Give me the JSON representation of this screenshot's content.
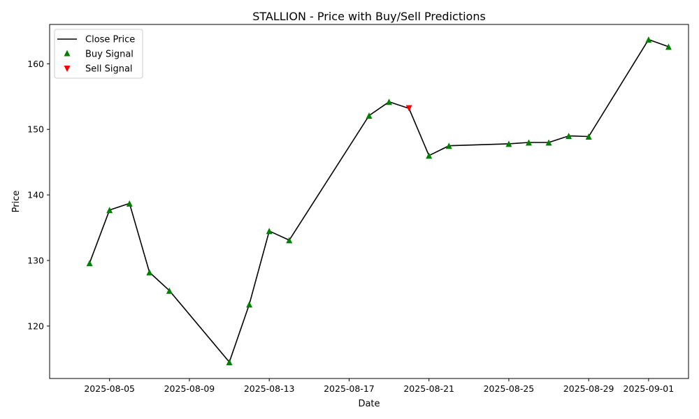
{
  "chart_data": {
    "type": "line",
    "title": "STALLION - Price with Buy/Sell Predictions",
    "xlabel": "Date",
    "ylabel": "Price",
    "x": [
      "2025-08-04",
      "2025-08-05",
      "2025-08-06",
      "2025-08-07",
      "2025-08-08",
      "2025-08-11",
      "2025-08-12",
      "2025-08-13",
      "2025-08-14",
      "2025-08-18",
      "2025-08-19",
      "2025-08-20",
      "2025-08-21",
      "2025-08-22",
      "2025-08-25",
      "2025-08-26",
      "2025-08-27",
      "2025-08-28",
      "2025-08-29",
      "2025-09-01",
      "2025-09-02"
    ],
    "series": [
      {
        "name": "Close Price",
        "kind": "line",
        "color": "#000000",
        "values": [
          129.6,
          137.7,
          138.7,
          128.2,
          125.4,
          114.5,
          123.3,
          134.5,
          133.1,
          152.1,
          154.2,
          153.2,
          146.0,
          147.5,
          147.8,
          148.0,
          148.0,
          149.0,
          148.9,
          163.7,
          162.6
        ]
      },
      {
        "name": "Buy Signal",
        "kind": "marker",
        "marker": "triangle-up",
        "color": "#008000",
        "x": [
          "2025-08-04",
          "2025-08-05",
          "2025-08-06",
          "2025-08-07",
          "2025-08-08",
          "2025-08-11",
          "2025-08-12",
          "2025-08-13",
          "2025-08-14",
          "2025-08-18",
          "2025-08-19",
          "2025-08-21",
          "2025-08-22",
          "2025-08-25",
          "2025-08-26",
          "2025-08-27",
          "2025-08-28",
          "2025-08-29",
          "2025-09-01",
          "2025-09-02"
        ],
        "values": [
          129.6,
          137.7,
          138.7,
          128.2,
          125.4,
          114.5,
          123.3,
          134.5,
          133.1,
          152.1,
          154.2,
          146.0,
          147.5,
          147.8,
          148.0,
          148.0,
          149.0,
          148.9,
          163.7,
          162.6
        ]
      },
      {
        "name": "Sell Signal",
        "kind": "marker",
        "marker": "triangle-down",
        "color": "#ff0000",
        "x": [
          "2025-08-20"
        ],
        "values": [
          153.2
        ]
      }
    ],
    "x_ticks": [
      "2025-08-05",
      "2025-08-09",
      "2025-08-13",
      "2025-08-17",
      "2025-08-21",
      "2025-08-25",
      "2025-08-29",
      "2025-09-01"
    ],
    "y_ticks": [
      120,
      130,
      140,
      150,
      160
    ],
    "xlim": [
      "2025-08-02",
      "2025-09-03"
    ],
    "ylim": [
      112,
      166
    ],
    "grid": false,
    "legend_position": "top-left"
  }
}
